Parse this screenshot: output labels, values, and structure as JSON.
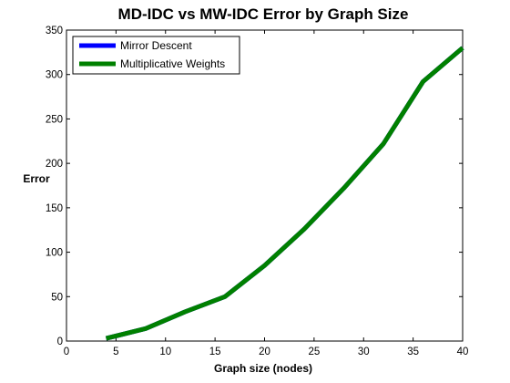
{
  "chart_data": {
    "type": "line",
    "title": "MD-IDC vs MW-IDC Error by Graph Size",
    "xlabel": "Graph size (nodes)",
    "ylabel": "Error",
    "xlim": [
      0,
      40
    ],
    "ylim": [
      0,
      350
    ],
    "xticks": [
      0,
      5,
      10,
      15,
      20,
      25,
      30,
      35,
      40
    ],
    "yticks": [
      0,
      50,
      100,
      150,
      200,
      250,
      300,
      350
    ],
    "grid": false,
    "legend_position": "top-left",
    "x": [
      4,
      8,
      12,
      16,
      20,
      24,
      28,
      32,
      36,
      40
    ],
    "series": [
      {
        "name": "Mirror Descent",
        "color": "#0000ff",
        "values": [
          3,
          14,
          33,
          50,
          85,
          126,
          172,
          222,
          292,
          330
        ]
      },
      {
        "name": "Multiplicative Weights",
        "color": "#008000",
        "values": [
          3,
          14,
          33,
          50,
          85,
          126,
          172,
          222,
          292,
          330
        ]
      }
    ]
  }
}
